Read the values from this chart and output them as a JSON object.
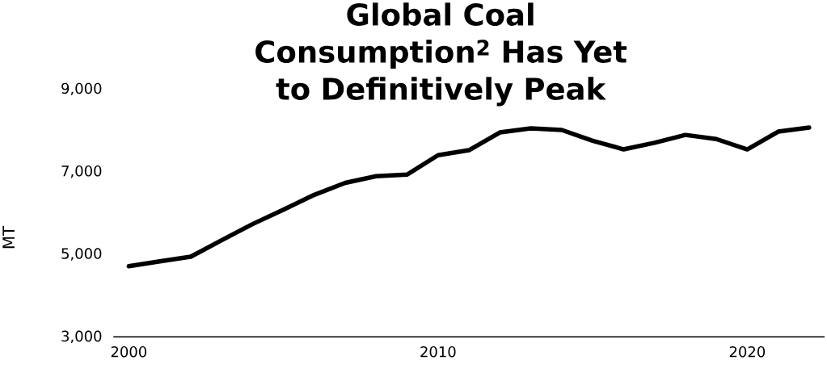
{
  "chart_data": {
    "type": "line",
    "title": "Global Coal Consumption$^{2}$ Has Yet to Definitively Peak",
    "ylabel": "MT",
    "x": [
      2000,
      2001,
      2002,
      2003,
      2004,
      2005,
      2006,
      2007,
      2008,
      2009,
      2010,
      2011,
      2012,
      2013,
      2014,
      2015,
      2016,
      2017,
      2018,
      2019,
      2020,
      2021,
      2022
    ],
    "series": [
      {
        "color": "#000000",
        "values": [
          4710,
          4830,
          4940,
          5340,
          5730,
          6080,
          6440,
          6730,
          6890,
          6930,
          7400,
          7520,
          7950,
          8050,
          8010,
          7750,
          7540,
          7700,
          7890,
          7790,
          7540,
          7970,
          8070
        ]
      }
    ],
    "xlim": [
      1999.5,
      2022.5
    ],
    "ylim": [
      3000,
      9000
    ],
    "xticks": [
      2000,
      2010,
      2020
    ],
    "yticks": [
      {
        "value": 3000,
        "label": "3,000"
      },
      {
        "value": 5000,
        "label": "5,000"
      },
      {
        "value": 7000,
        "label": "7,000"
      },
      {
        "value": 9000,
        "label": "9,000"
      }
    ]
  }
}
